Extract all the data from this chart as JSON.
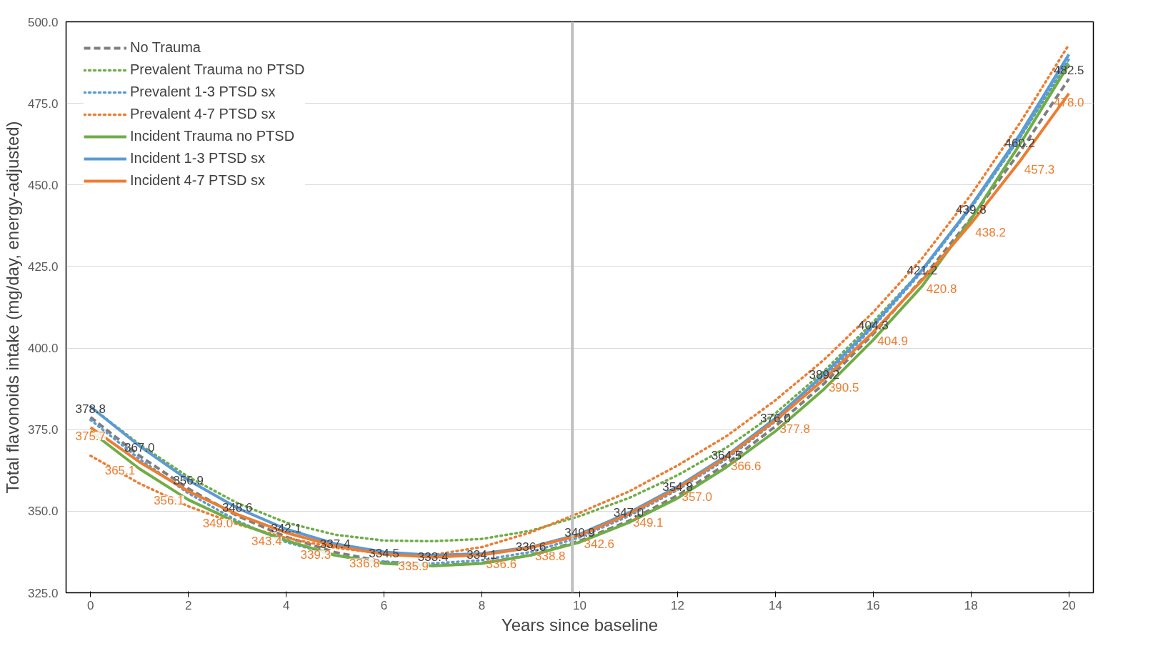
{
  "chart_data": {
    "type": "line",
    "xlabel": "Years since baseline",
    "ylabel": "Total flavonoids intake (mg/day, energy-adjusted)",
    "x": [
      0,
      1,
      2,
      3,
      4,
      5,
      6,
      7,
      8,
      9,
      10,
      11,
      12,
      13,
      14,
      15,
      16,
      17,
      18,
      19,
      20
    ],
    "xlim": [
      -0.5,
      20.5
    ],
    "xticks": [
      0,
      2,
      4,
      6,
      8,
      10,
      12,
      14,
      16,
      18,
      20
    ],
    "ylim": [
      325,
      500
    ],
    "yticks": [
      {
        "value": 325,
        "label": "325.0"
      },
      {
        "value": 350,
        "label": "350.0"
      },
      {
        "value": 375,
        "label": "375.0"
      },
      {
        "value": 400,
        "label": "400.0"
      },
      {
        "value": 425,
        "label": "425.0"
      },
      {
        "value": 450,
        "label": "450.0"
      },
      {
        "value": 475,
        "label": "475.0"
      },
      {
        "value": 500,
        "label": "500.0"
      }
    ],
    "grid": "y",
    "legend": "top left",
    "marker": "none",
    "ref_lines": [
      {
        "axis": "x",
        "value": 9.85,
        "color": "#bfbfbf"
      }
    ],
    "series": [
      {
        "name": "No Trauma",
        "color": "#7f7f7f",
        "line_style": "dashed",
        "values": [
          378.8,
          367.0,
          356.9,
          348.6,
          342.1,
          337.4,
          334.5,
          333.4,
          334.1,
          336.6,
          340.9,
          347.0,
          354.8,
          364.5,
          376.0,
          389.2,
          404.3,
          421.2,
          439.8,
          460.2,
          482.5
        ],
        "value_labels": [
          "378.8",
          "367.0",
          "356.9",
          "348.6",
          "342.1",
          "337.4",
          "334.5",
          "333.4",
          "334.1",
          "336.6",
          "340.9",
          "347.0",
          "354.8",
          "364.5",
          "376.0",
          "389.2",
          "404.3",
          "421.2",
          "439.8",
          "460.2",
          "482.5"
        ]
      },
      {
        "name": "Prevalent Trauma no PTSD",
        "color": "#70ad47",
        "line_style": "dotted",
        "values": [
          382.0,
          370.5,
          360.5,
          352.5,
          346.5,
          342.8,
          341.0,
          340.8,
          341.5,
          344.0,
          348.5,
          354.0,
          361.0,
          369.5,
          380.0,
          393.0,
          408.0,
          424.0,
          443.0,
          464.5,
          488.0
        ]
      },
      {
        "name": "Prevalent 1-3 PTSD sx",
        "color": "#5b9bd5",
        "line_style": "dotted",
        "values": [
          378.0,
          366.0,
          355.5,
          347.0,
          340.5,
          336.5,
          334.5,
          334.0,
          335.0,
          337.5,
          342.0,
          348.5,
          356.5,
          366.0,
          377.5,
          391.0,
          406.5,
          423.5,
          443.0,
          464.5,
          488.5
        ]
      },
      {
        "name": "Prevalent 4-7 PTSD sx",
        "color": "#ed7d31",
        "line_style": "dotted",
        "values": [
          367.0,
          358.5,
          351.5,
          346.0,
          341.8,
          338.8,
          337.0,
          336.6,
          339.0,
          343.5,
          349.5,
          356.0,
          364.0,
          373.0,
          384.0,
          396.5,
          411.0,
          427.5,
          447.0,
          469.0,
          493.0
        ]
      },
      {
        "name": "Incident Trauma no PTSD",
        "color": "#70ad47",
        "line_style": "solid",
        "values": [
          374.5,
          363.0,
          353.5,
          346.5,
          341.0,
          336.5,
          334.0,
          333.2,
          334.0,
          336.5,
          340.5,
          346.5,
          354.0,
          363.5,
          374.5,
          387.5,
          402.5,
          419.0,
          439.5,
          462.5,
          487.0
        ]
      },
      {
        "name": "Incident 1-3 PTSD sx",
        "color": "#5b9bd5",
        "line_style": "solid",
        "values": [
          382.0,
          370.0,
          359.5,
          351.0,
          344.5,
          340.0,
          337.5,
          336.5,
          337.0,
          339.0,
          343.0,
          349.5,
          357.5,
          367.0,
          378.5,
          392.0,
          407.0,
          424.0,
          443.5,
          465.5,
          490.0
        ]
      },
      {
        "name": "Incident 4-7 PTSD sx",
        "color": "#ed7d31",
        "line_style": "solid",
        "values": [
          375.7,
          365.1,
          356.1,
          349.0,
          343.4,
          339.3,
          336.8,
          335.9,
          336.6,
          338.8,
          342.6,
          349.1,
          357.0,
          366.6,
          377.8,
          390.5,
          404.9,
          420.8,
          438.2,
          457.3,
          478.0
        ],
        "value_labels": [
          "375.7",
          "365.1",
          "356.1",
          "349.0",
          "343.4",
          "339.3",
          "336.8",
          "335.9",
          "336.6",
          "338.8",
          "342.6",
          "349.1",
          "357.0",
          "366.6",
          "377.8",
          "390.5",
          "404.9",
          "420.8",
          "438.2",
          "457.3",
          "478.0"
        ]
      }
    ]
  }
}
